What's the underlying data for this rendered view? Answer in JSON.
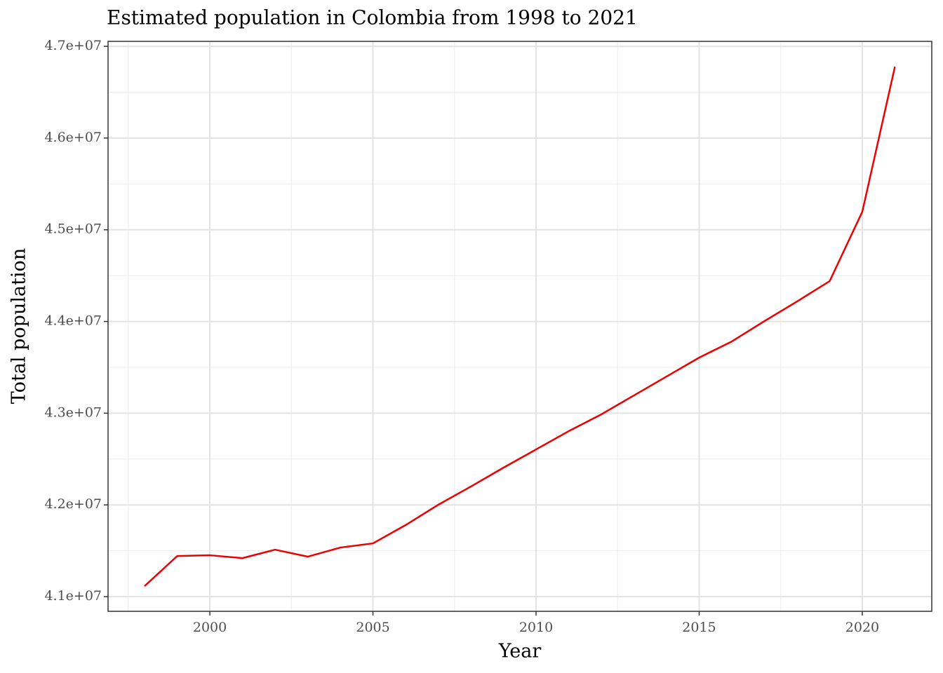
{
  "chart_data": {
    "type": "line",
    "title": "Estimated population in Colombia from 1998 to 2021",
    "x_label": "Year",
    "y_label": "Total population",
    "x": [
      1998,
      1999,
      2000,
      2001,
      2002,
      2003,
      2004,
      2005,
      2006,
      2007,
      2008,
      2009,
      2010,
      2011,
      2012,
      2013,
      2014,
      2015,
      2016,
      2017,
      2018,
      2019,
      2020,
      2021
    ],
    "series": [
      {
        "name": "Total population",
        "color": "#ee0000",
        "values": [
          41115000,
          41443000,
          41451000,
          41420000,
          41512000,
          41436000,
          41535000,
          41581000,
          41780000,
          42001000,
          42200000,
          42406000,
          42605000,
          42804000,
          42987000,
          43194000,
          43400000,
          43606000,
          43782000,
          44004000,
          44218000,
          44440000,
          45196000,
          46778000
        ]
      }
    ],
    "xlim": [
      1996.88,
      2022.13
    ],
    "xticks": [
      2000,
      2005,
      2010,
      2015,
      2020
    ],
    "ylim": [
      40840000,
      47054000
    ],
    "yticks": [
      {
        "value": 41000000,
        "label": "4.1e+07"
      },
      {
        "value": 42000000,
        "label": "4.2e+07"
      },
      {
        "value": 43000000,
        "label": "4.3e+07"
      },
      {
        "value": 44000000,
        "label": "4.4e+07"
      },
      {
        "value": 45000000,
        "label": "4.5e+07"
      },
      {
        "value": 46000000,
        "label": "4.6e+07"
      },
      {
        "value": 47000000,
        "label": "4.7e+07"
      }
    ],
    "grid": true
  }
}
